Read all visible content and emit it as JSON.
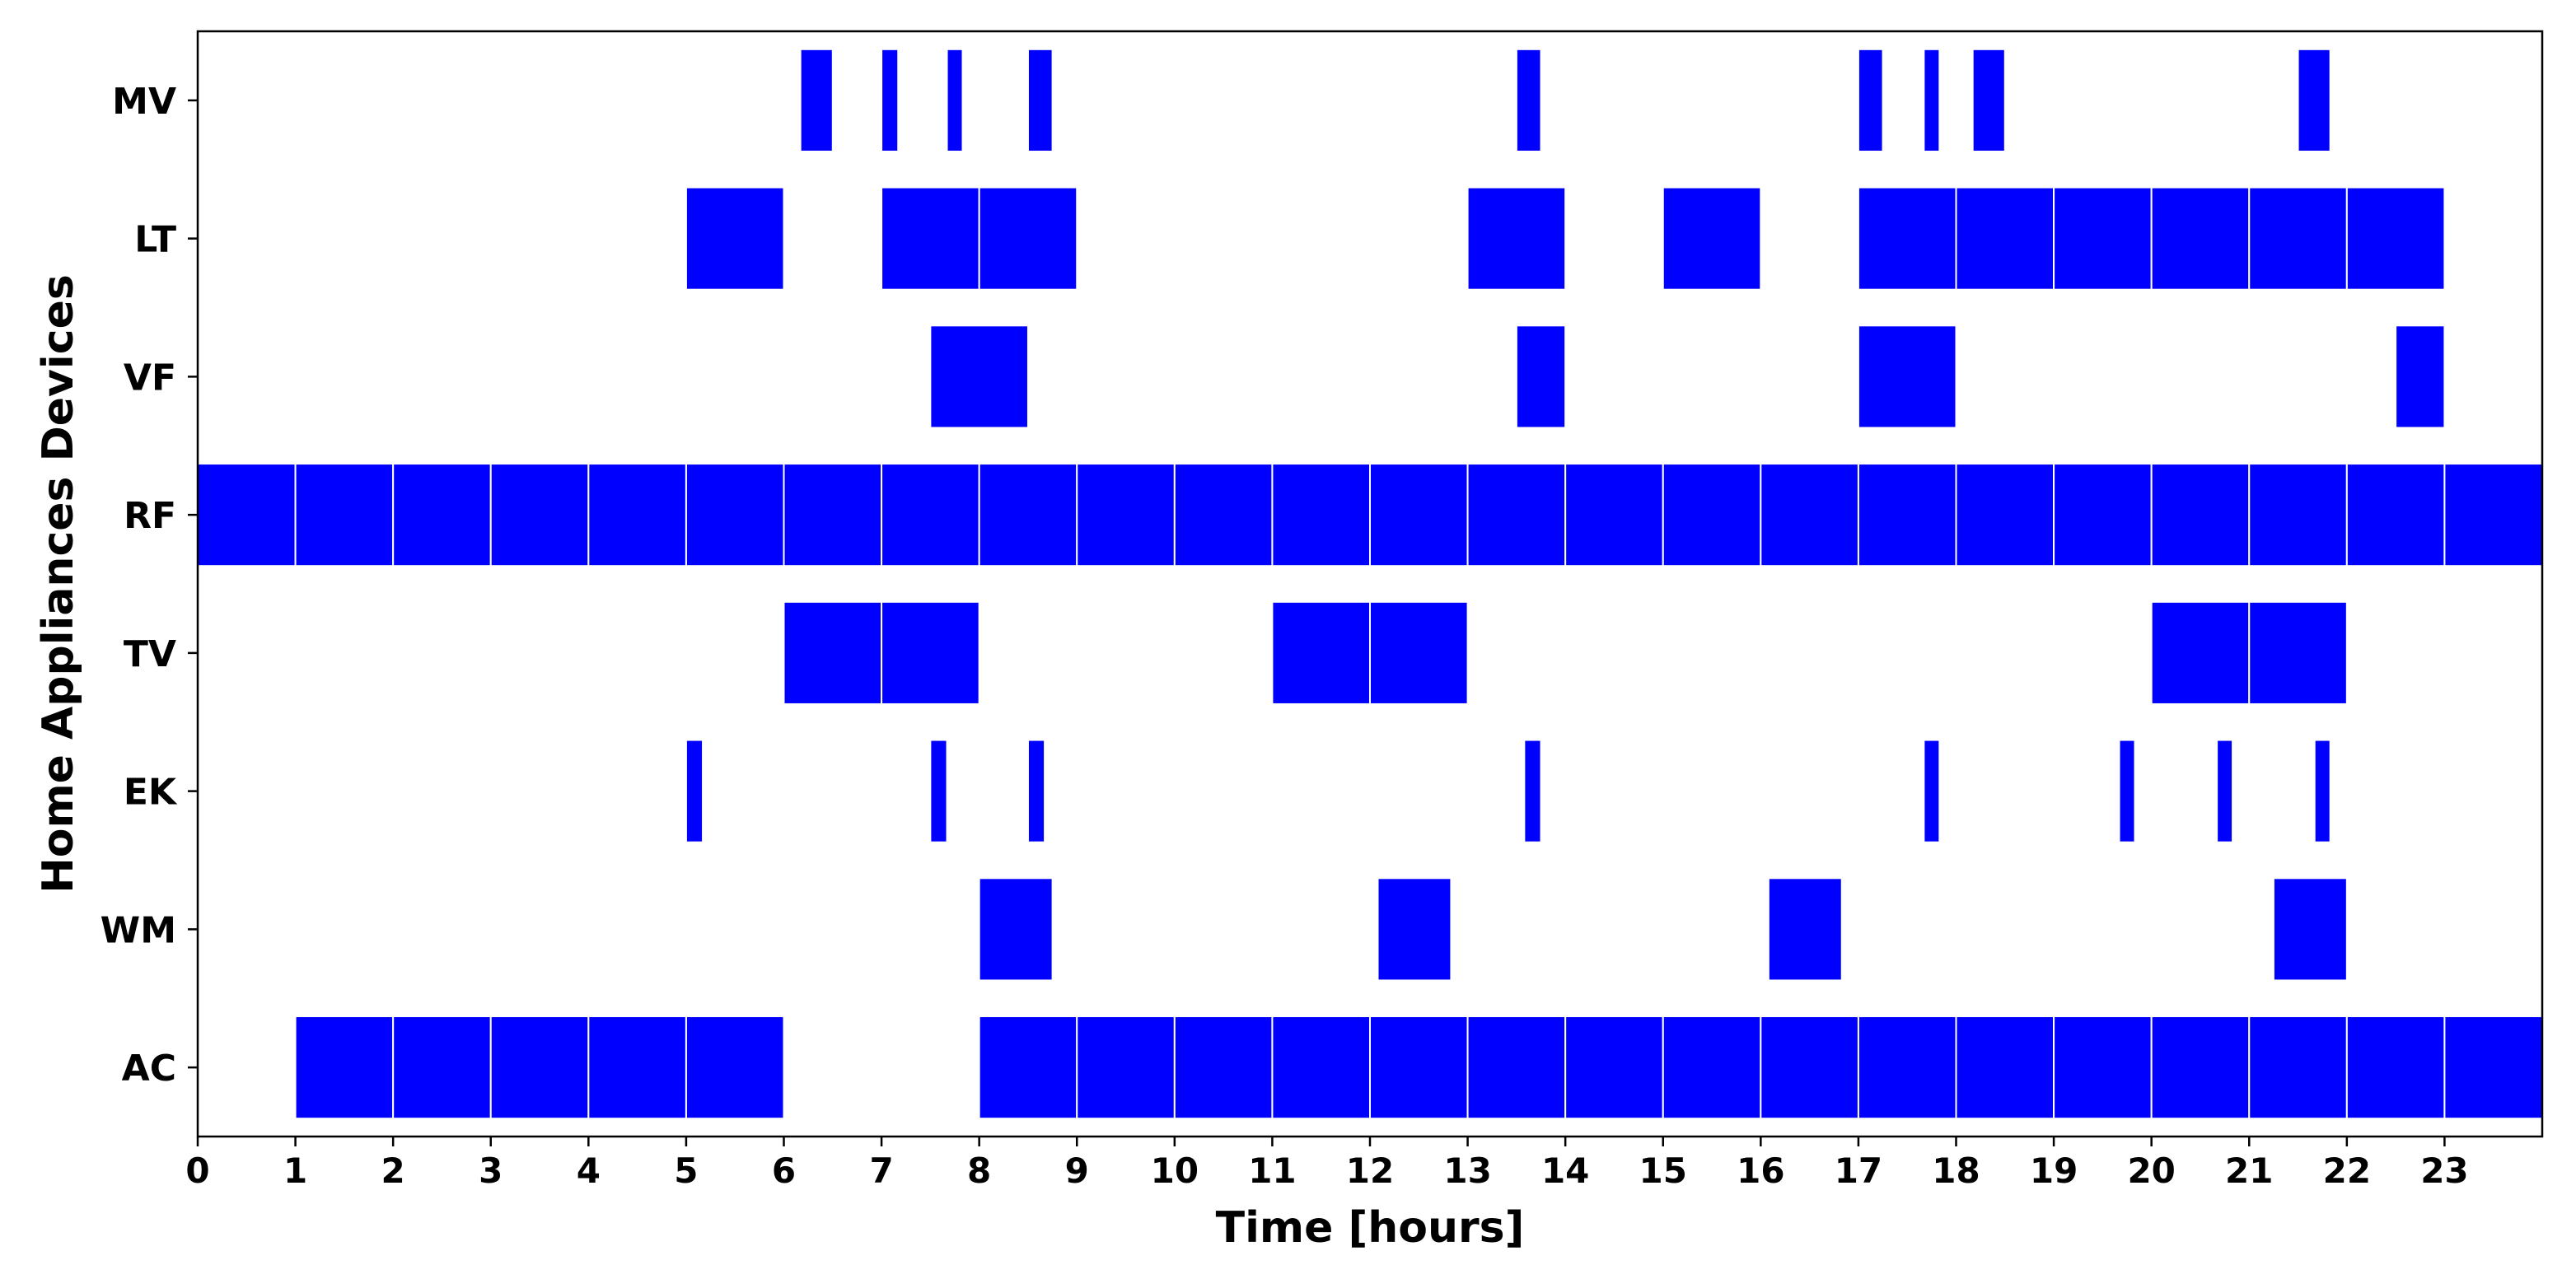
{
  "chart_data": {
    "type": "timeline",
    "title": "",
    "xlabel": "Time [hours]",
    "ylabel": "Home Appliances Devices",
    "xlim": [
      0,
      24
    ],
    "xticks": [
      0,
      1,
      2,
      3,
      4,
      5,
      6,
      7,
      8,
      9,
      10,
      11,
      12,
      13,
      14,
      15,
      16,
      17,
      18,
      19,
      20,
      21,
      22,
      23
    ],
    "grid": false,
    "bar_color": "#0000ff",
    "edge_color": "#ffffff",
    "categories": [
      "MV",
      "LT",
      "VF",
      "RF",
      "TV",
      "EK",
      "WM",
      "AC"
    ],
    "series": [
      {
        "device": "MV",
        "intervals": [
          [
            6.17,
            6.5
          ],
          [
            7.0,
            7.17
          ],
          [
            7.67,
            7.83
          ],
          [
            8.5,
            8.75
          ],
          [
            13.5,
            13.75
          ],
          [
            17.0,
            17.25
          ],
          [
            17.67,
            17.83
          ],
          [
            18.17,
            18.5
          ],
          [
            21.5,
            21.83
          ]
        ]
      },
      {
        "device": "LT",
        "intervals": [
          [
            5,
            6
          ],
          [
            7,
            8
          ],
          [
            8,
            9
          ],
          [
            13,
            14
          ],
          [
            15,
            16
          ],
          [
            17,
            18
          ],
          [
            18,
            19
          ],
          [
            19,
            20
          ],
          [
            20,
            21
          ],
          [
            21,
            22
          ],
          [
            22,
            23
          ]
        ]
      },
      {
        "device": "VF",
        "intervals": [
          [
            7.5,
            8.5
          ],
          [
            13.5,
            14
          ],
          [
            17,
            18
          ],
          [
            22.5,
            23
          ]
        ]
      },
      {
        "device": "RF",
        "intervals": [
          [
            0,
            1
          ],
          [
            1,
            2
          ],
          [
            2,
            3
          ],
          [
            3,
            4
          ],
          [
            4,
            5
          ],
          [
            5,
            6
          ],
          [
            6,
            7
          ],
          [
            7,
            8
          ],
          [
            8,
            9
          ],
          [
            9,
            10
          ],
          [
            10,
            11
          ],
          [
            11,
            12
          ],
          [
            12,
            13
          ],
          [
            13,
            14
          ],
          [
            14,
            15
          ],
          [
            15,
            16
          ],
          [
            16,
            17
          ],
          [
            17,
            18
          ],
          [
            18,
            19
          ],
          [
            19,
            20
          ],
          [
            20,
            21
          ],
          [
            21,
            22
          ],
          [
            22,
            23
          ],
          [
            23,
            24
          ]
        ]
      },
      {
        "device": "TV",
        "intervals": [
          [
            6,
            7
          ],
          [
            7,
            8
          ],
          [
            11,
            12
          ],
          [
            12,
            13
          ],
          [
            20,
            21
          ],
          [
            21,
            22
          ]
        ]
      },
      {
        "device": "EK",
        "intervals": [
          [
            5.0,
            5.17
          ],
          [
            7.5,
            7.67
          ],
          [
            8.5,
            8.67
          ],
          [
            13.58,
            13.75
          ],
          [
            17.67,
            17.83
          ],
          [
            19.67,
            19.83
          ],
          [
            20.67,
            20.83
          ],
          [
            21.67,
            21.83
          ]
        ]
      },
      {
        "device": "WM",
        "intervals": [
          [
            8,
            8.75
          ],
          [
            12.08,
            12.83
          ],
          [
            16.08,
            16.83
          ],
          [
            21.25,
            22
          ]
        ]
      },
      {
        "device": "AC",
        "intervals": [
          [
            1,
            2
          ],
          [
            2,
            3
          ],
          [
            3,
            4
          ],
          [
            4,
            5
          ],
          [
            5,
            6
          ],
          [
            8,
            9
          ],
          [
            9,
            10
          ],
          [
            10,
            11
          ],
          [
            11,
            12
          ],
          [
            12,
            13
          ],
          [
            13,
            14
          ],
          [
            14,
            15
          ],
          [
            15,
            16
          ],
          [
            16,
            17
          ],
          [
            17,
            18
          ],
          [
            18,
            19
          ],
          [
            19,
            20
          ],
          [
            20,
            21
          ],
          [
            21,
            22
          ],
          [
            22,
            23
          ],
          [
            23,
            24
          ]
        ]
      }
    ]
  }
}
